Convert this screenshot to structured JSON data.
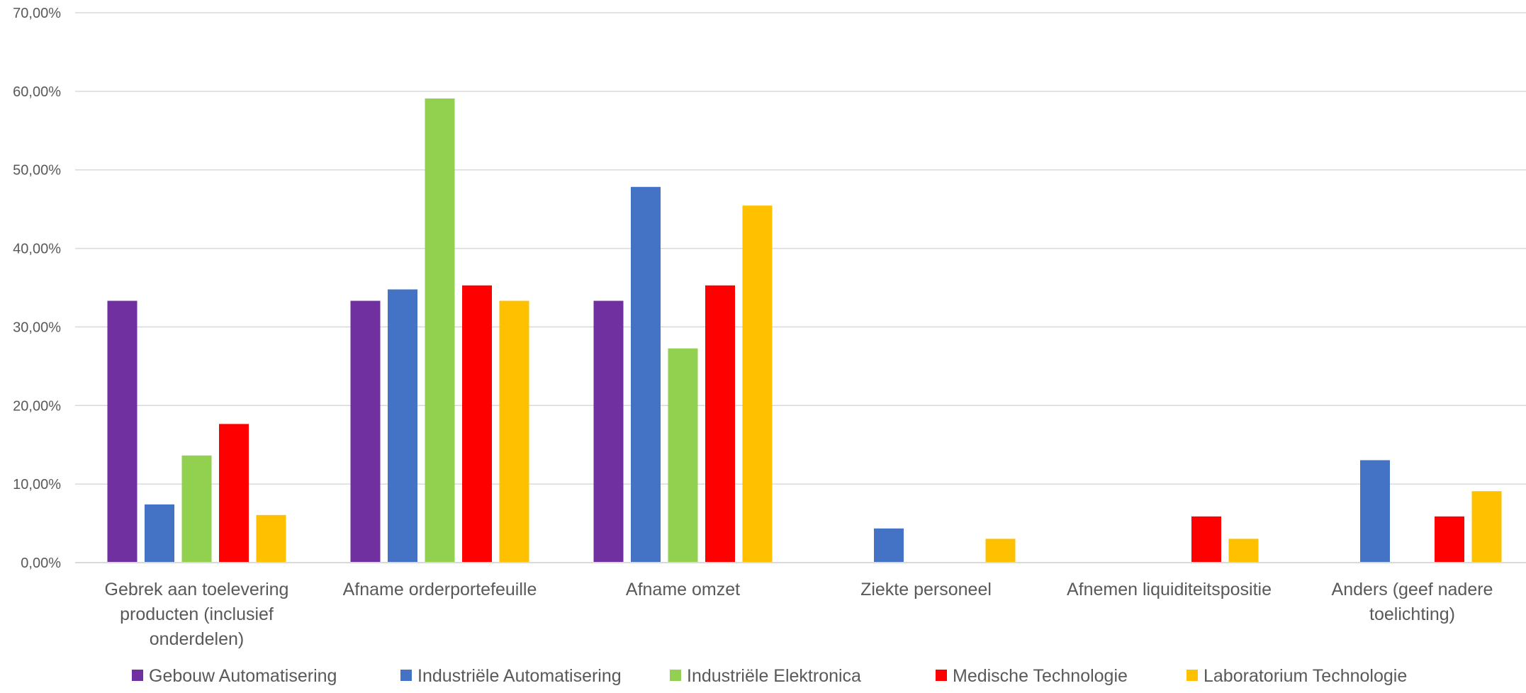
{
  "chart_data": {
    "type": "bar",
    "title": "",
    "xlabel": "",
    "ylabel": "",
    "ylim": [
      0,
      70
    ],
    "y_tick_step": 10,
    "y_tick_labels": [
      "0,00%",
      "10,00%",
      "20,00%",
      "30,00%",
      "40,00%",
      "50,00%",
      "60,00%",
      "70,00%"
    ],
    "grid": true,
    "legend_position": "bottom",
    "categories": [
      [
        "Gebrek aan toelevering",
        "producten (inclusief",
        "onderdelen)"
      ],
      [
        "Afname orderportefeuille"
      ],
      [
        "Afname omzet"
      ],
      [
        "Ziekte personeel"
      ],
      [
        "Afnemen liquiditeitspositie"
      ],
      [
        "Anders (geef nadere",
        "toelichting)"
      ]
    ],
    "series": [
      {
        "name": "Gebouw Automatisering",
        "color": "#7030A0",
        "values": [
          33.33,
          33.33,
          33.33,
          0,
          0,
          0
        ]
      },
      {
        "name": "Industriële Automatisering",
        "color": "#4472C4",
        "values": [
          7.41,
          34.78,
          47.83,
          4.35,
          0,
          13.04
        ]
      },
      {
        "name": "Industriële Elektronica",
        "color": "#92D050",
        "values": [
          13.64,
          59.09,
          27.27,
          0,
          0,
          0
        ]
      },
      {
        "name": "Medische Technologie",
        "color": "#FF0000",
        "values": [
          17.65,
          35.29,
          35.29,
          0,
          5.88,
          5.88
        ]
      },
      {
        "name": "Laboratorium Technologie",
        "color": "#FFC000",
        "values": [
          6.06,
          33.33,
          45.45,
          3.03,
          3.03,
          9.09
        ]
      }
    ],
    "gridline_color": "#D9D9D9"
  }
}
